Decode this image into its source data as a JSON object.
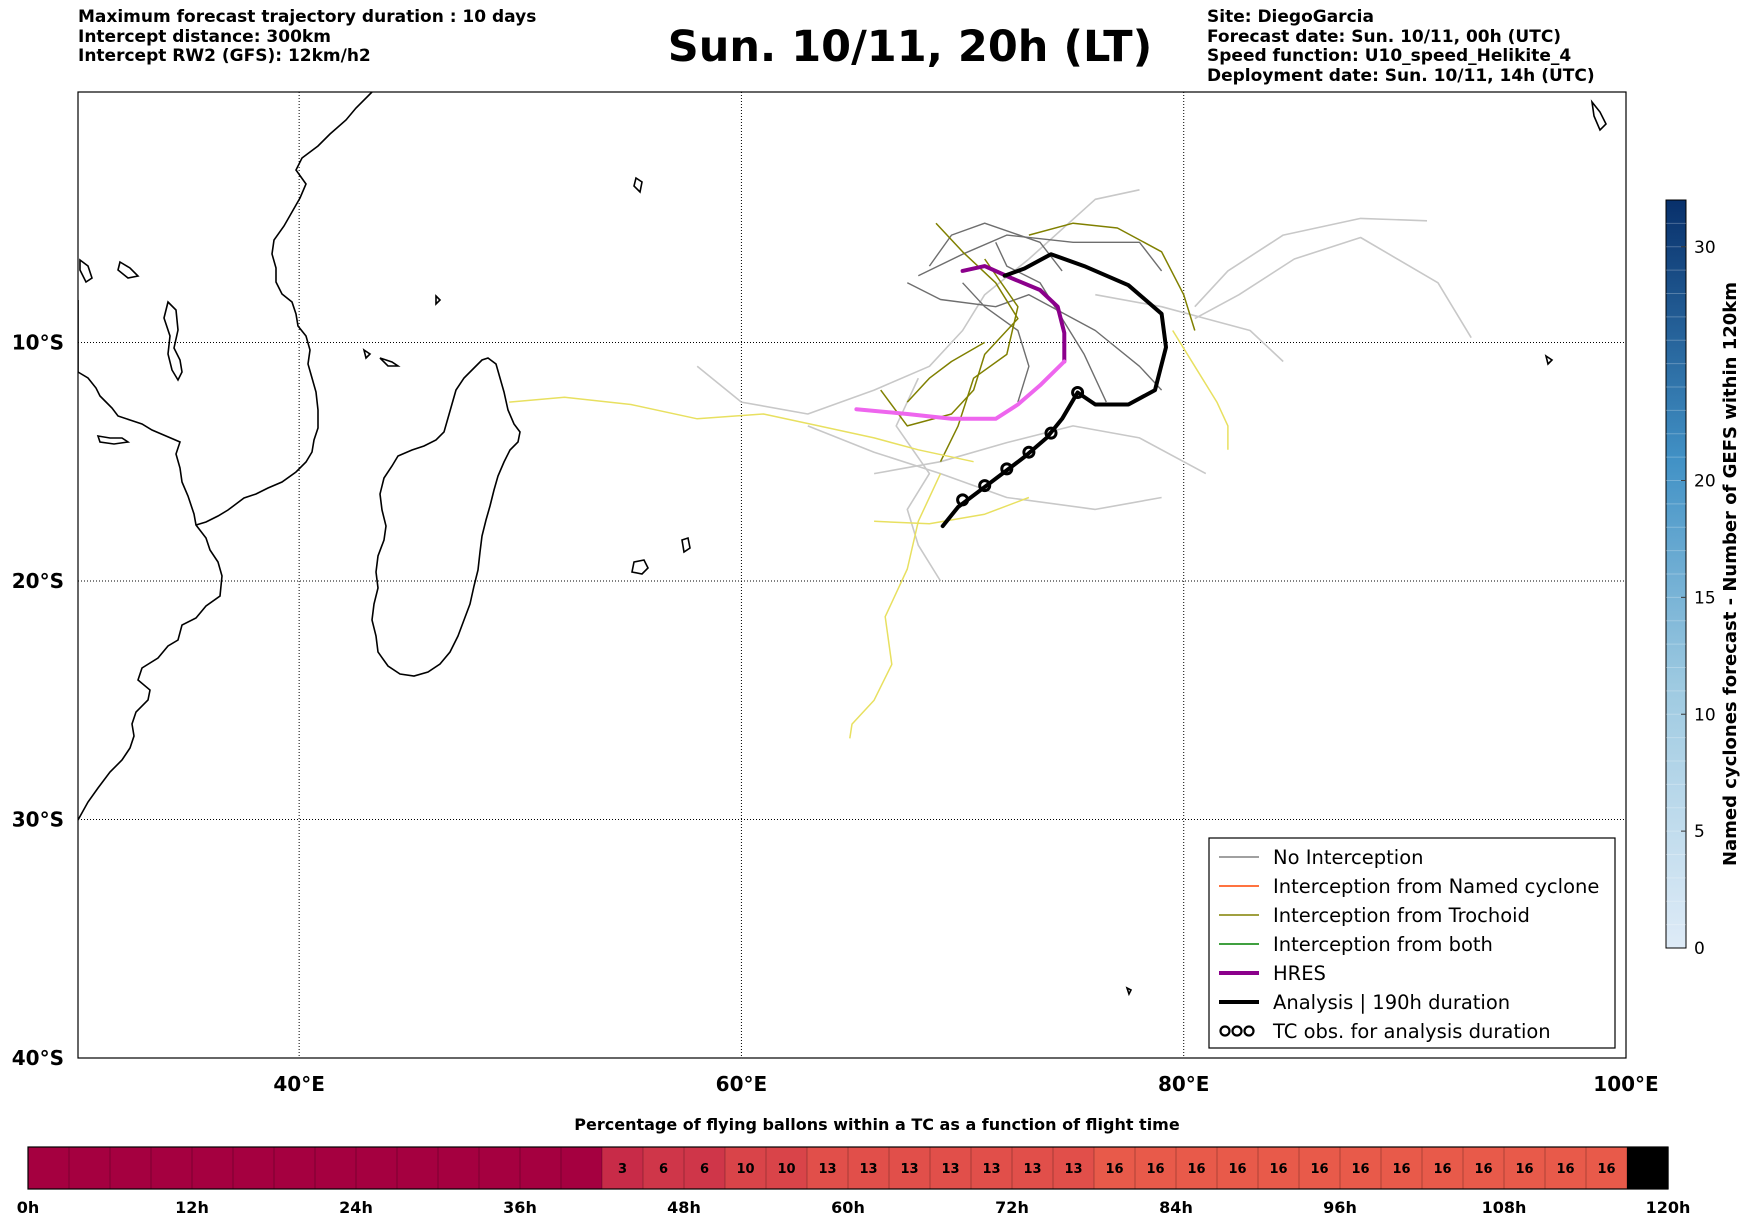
{
  "header": {
    "left_lines": [
      "Maximum forecast trajectory duration : 10 days",
      "Intercept distance: 300km",
      "Intercept RW2 (GFS):  12km/h2"
    ],
    "title": "Sun. 10/11, 20h (LT)",
    "right_lines": [
      "Site: DiegoGarcia",
      "Forecast date: Sun. 10/11, 00h (UTC)",
      "Speed function: U10_speed_Helikite_4",
      "Deployment date: Sun. 10/11, 14h (UTC)"
    ]
  },
  "map": {
    "lon_range": [
      30,
      100
    ],
    "lat_range": [
      -40,
      0.5
    ],
    "lon_ticks": [
      "40°E",
      "60°E",
      "80°E",
      "100°E"
    ],
    "lat_ticks": [
      "10°S",
      "20°S",
      "30°S",
      "40°S"
    ],
    "lon_tick_values": [
      40,
      60,
      80,
      100
    ],
    "lat_tick_values": [
      -10,
      -20,
      -30,
      -40
    ]
  },
  "legend": {
    "entries": [
      {
        "label": "No Interception",
        "color": "#808080"
      },
      {
        "label": "Interception from Named cyclone",
        "color": "#ff4500"
      },
      {
        "label": "Interception from Trochoid",
        "color": "#808000"
      },
      {
        "label": "Interception from both",
        "color": "#008000"
      },
      {
        "label": "HRES",
        "color": "#8b008b"
      },
      {
        "label": "Analysis | 190h duration",
        "color": "#000000"
      },
      {
        "label": "TC obs. for analysis duration",
        "color": "#000000"
      }
    ]
  },
  "colorbar": {
    "label": "Named cyclones forecast - Number of GEFS within 120km",
    "ticks": [
      "0",
      "5",
      "10",
      "15",
      "20",
      "30"
    ],
    "colors": [
      "#deebf7",
      "#08306b"
    ]
  },
  "bottom_bar": {
    "title": "Percentage of flying ballons within a TC as a function of flight time",
    "time_labels": [
      "0h",
      "12h",
      "24h",
      "36h",
      "48h",
      "60h",
      "72h",
      "84h",
      "96h",
      "108h",
      "120h"
    ],
    "colors": [
      "#a50040",
      "#e85a4a"
    ]
  },
  "chart_data": {
    "type": "line",
    "title": "Sun. 10/11, 20h (LT)",
    "x_axis": "longitude",
    "y_axis": "latitude",
    "series": [
      {
        "name": "HRES",
        "color": "#8b008b",
        "points": [
          [
            70.0,
            -7.0
          ],
          [
            71.0,
            -6.8
          ],
          [
            72.2,
            -7.3
          ],
          [
            73.5,
            -7.8
          ],
          [
            74.3,
            -8.5
          ],
          [
            74.6,
            -9.6
          ],
          [
            74.6,
            -10.8
          ]
        ]
      },
      {
        "name": "HRES",
        "color": "#ee66ee",
        "points": [
          [
            74.6,
            -10.8
          ],
          [
            73.5,
            -11.8
          ],
          [
            72.5,
            -12.6
          ],
          [
            71.5,
            -13.2
          ],
          [
            69.5,
            -13.2
          ],
          [
            67.5,
            -13.0
          ],
          [
            65.2,
            -12.8
          ]
        ]
      },
      {
        "name": "Analysis | 190h duration",
        "color": "#000000",
        "points": [
          [
            69.1,
            -17.7
          ],
          [
            69.8,
            -16.9
          ],
          [
            70.8,
            -16.2
          ],
          [
            71.8,
            -15.5
          ],
          [
            72.8,
            -14.8
          ],
          [
            73.8,
            -14.0
          ],
          [
            74.5,
            -13.2
          ],
          [
            75.2,
            -12.1
          ],
          [
            76.0,
            -12.6
          ],
          [
            77.5,
            -12.6
          ],
          [
            78.7,
            -12.0
          ],
          [
            79.2,
            -10.2
          ],
          [
            79.0,
            -8.8
          ],
          [
            77.5,
            -7.6
          ],
          [
            75.5,
            -6.8
          ],
          [
            74.0,
            -6.3
          ],
          [
            72.8,
            -6.9
          ],
          [
            71.9,
            -7.2
          ]
        ]
      },
      {
        "name": "TC obs. for analysis duration",
        "color": "#000000",
        "points": [
          [
            69.1,
            -17.7
          ],
          [
            70.0,
            -16.6
          ],
          [
            71.0,
            -16.0
          ],
          [
            72.0,
            -15.3
          ],
          [
            73.0,
            -14.6
          ],
          [
            74.0,
            -13.8
          ],
          [
            75.2,
            -12.1
          ]
        ]
      }
    ],
    "bottom_values": [
      "3",
      "6",
      "6",
      "10",
      "10",
      "13",
      "13",
      "13",
      "13",
      "13",
      "13",
      "13",
      "16",
      "16",
      "16",
      "16",
      "16",
      "16",
      "16",
      "16",
      "16",
      "16",
      "16",
      "16",
      "16"
    ],
    "bottom_value_bins_start": 14,
    "bottom_bins": 40,
    "bottom_range_h": [
      0,
      120
    ]
  }
}
